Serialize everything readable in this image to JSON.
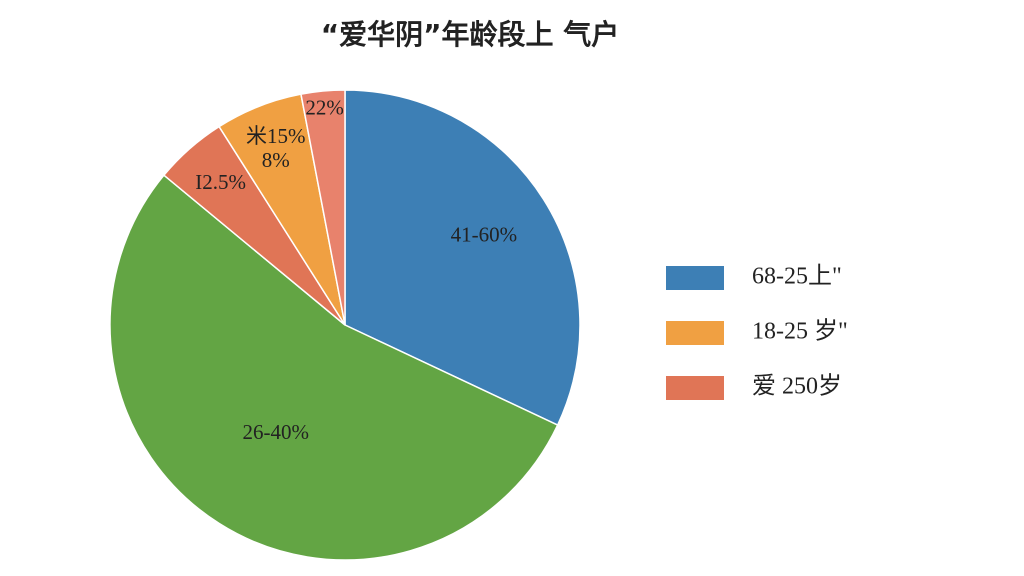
{
  "chart_data": {
    "type": "pie",
    "title": "“爱华阴”年龄段上 气户",
    "values": [
      32,
      54,
      5,
      6,
      3
    ],
    "labels": [
      "41-60%",
      "26-40%",
      "I2.5%",
      "米15%\n8%",
      "22%"
    ],
    "colors": [
      "#3d7fb5",
      "#63a544",
      "#e07556",
      "#f0a042",
      "#e8826c"
    ],
    "legend_position": "right",
    "legend": [
      {
        "name": "68-25上\"",
        "color": "#3d7fb5"
      },
      {
        "name": "18-25 岁\"",
        "color": "#f0a042"
      },
      {
        "name": "爱 250岁",
        "color": "#e07556"
      }
    ]
  }
}
